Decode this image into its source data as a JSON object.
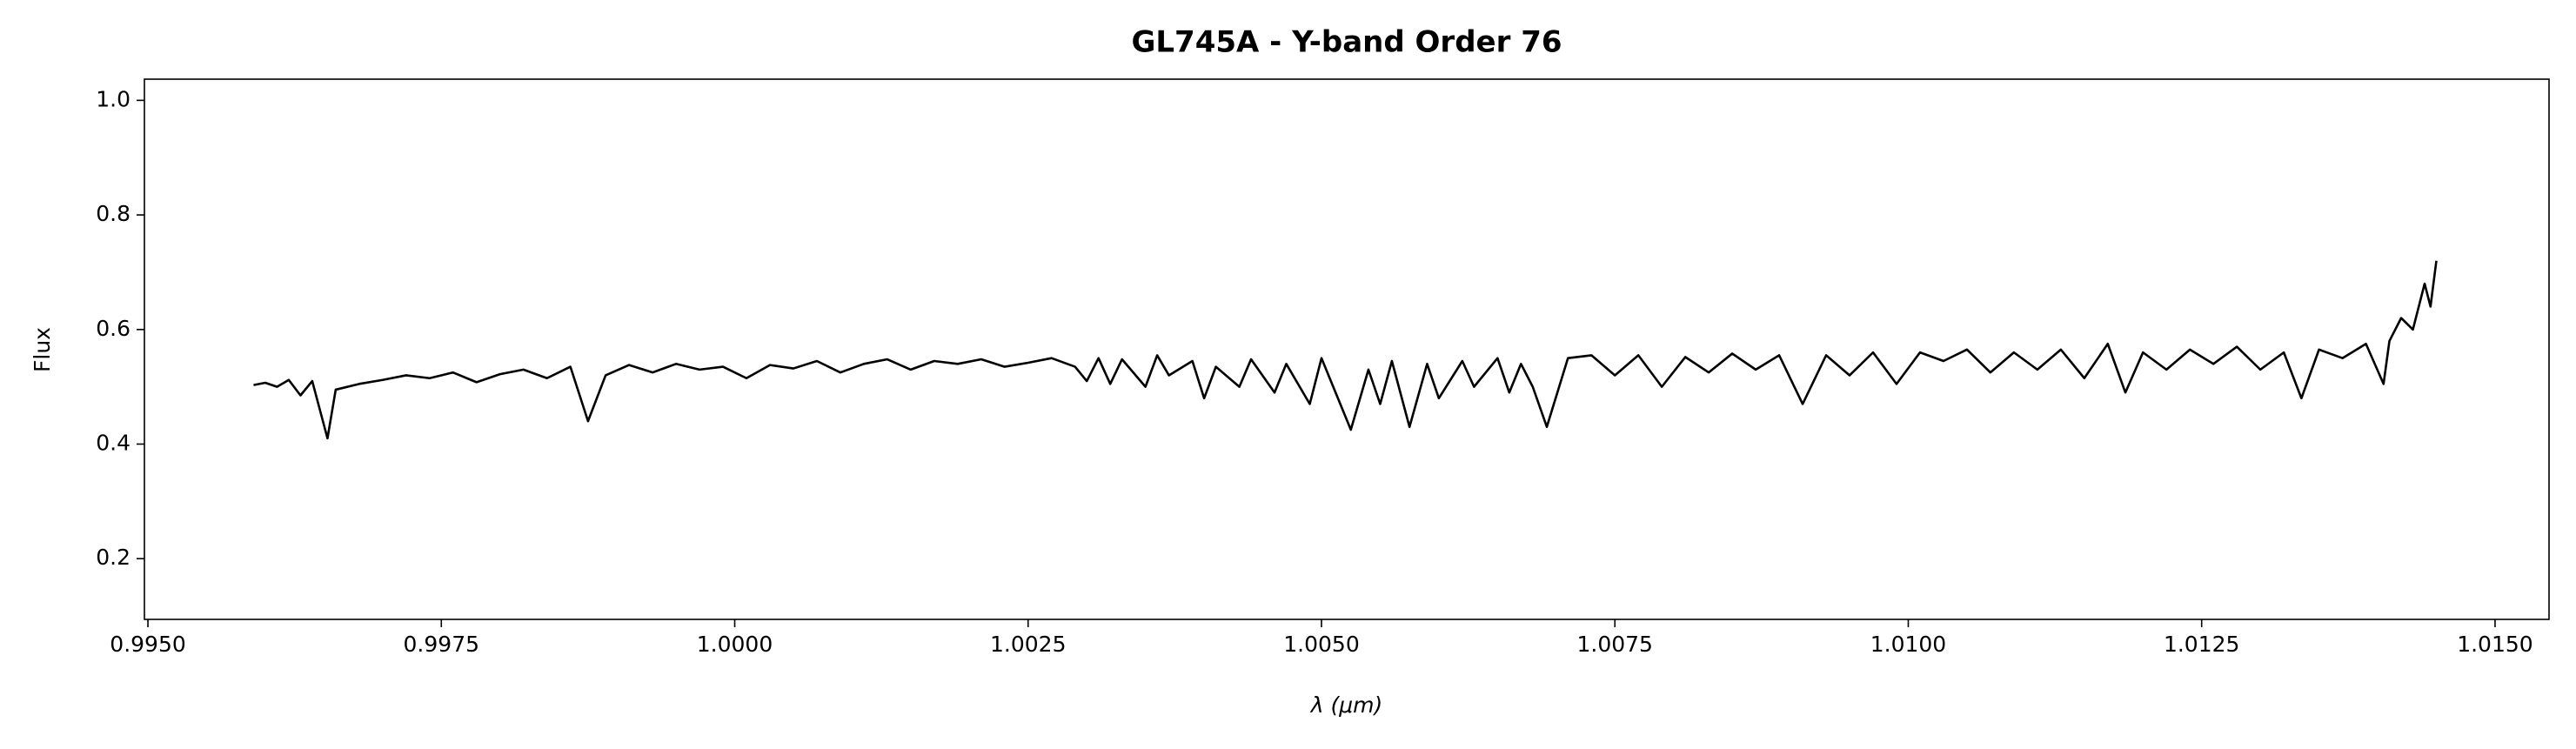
{
  "chart_data": {
    "type": "line",
    "title": "GL745A - Y-band Order 76",
    "xlabel": "λ (μm)",
    "ylabel": "Flux",
    "xlim": [
      0.99497,
      1.01546
    ],
    "ylim": [
      0.094,
      1.037
    ],
    "xticks": [
      {
        "value": 0.995,
        "label": "0.9950"
      },
      {
        "value": 0.9975,
        "label": "0.9975"
      },
      {
        "value": 1.0,
        "label": "1.0000"
      },
      {
        "value": 1.0025,
        "label": "1.0025"
      },
      {
        "value": 1.005,
        "label": "1.0050"
      },
      {
        "value": 1.0075,
        "label": "1.0075"
      },
      {
        "value": 1.01,
        "label": "1.0100"
      },
      {
        "value": 1.0125,
        "label": "1.0125"
      },
      {
        "value": 1.015,
        "label": "1.0150"
      }
    ],
    "yticks": [
      0.2,
      0.4,
      0.6,
      0.8,
      {
        "value": 1.0,
        "label": "1.0"
      }
    ],
    "grid": false,
    "series": [
      {
        "color": "#000000",
        "x": [
          0.9959,
          0.996,
          0.9961,
          0.9962,
          0.9963,
          0.9964,
          0.99653,
          0.9966,
          0.9968,
          0.997,
          0.9972,
          0.9974,
          0.9976,
          0.9978,
          0.998,
          0.9982,
          0.9984,
          0.9986,
          0.99875,
          0.9989,
          0.9991,
          0.9993,
          0.9995,
          0.9997,
          0.9999,
          1.0001,
          1.0003,
          1.0005,
          1.0007,
          1.0009,
          1.0011,
          1.0013,
          1.0015,
          1.0017,
          1.0019,
          1.0021,
          1.0023,
          1.0025,
          1.0027,
          1.0029,
          1.003,
          1.0031,
          1.0032,
          1.0033,
          1.0035,
          1.0036,
          1.0037,
          1.0039,
          1.004,
          1.0041,
          1.0043,
          1.0044,
          1.0046,
          1.0047,
          1.0049,
          1.005,
          1.0051,
          1.00525,
          1.0054,
          1.0055,
          1.0056,
          1.00575,
          1.0059,
          1.006,
          1.0062,
          1.0063,
          1.0065,
          1.0066,
          1.0067,
          1.0068,
          1.00692,
          1.0071,
          1.0073,
          1.0075,
          1.0077,
          1.0079,
          1.0081,
          1.0083,
          1.0085,
          1.0087,
          1.0089,
          1.0091,
          1.0093,
          1.0095,
          1.0097,
          1.0099,
          1.0101,
          1.0103,
          1.0105,
          1.0107,
          1.0109,
          1.0111,
          1.0113,
          1.0115,
          1.0117,
          1.01185,
          1.012,
          1.0122,
          1.0124,
          1.0126,
          1.0128,
          1.013,
          1.0132,
          1.01335,
          1.0135,
          1.0137,
          1.0139,
          1.01405,
          1.0141,
          1.0142,
          1.0143,
          1.0144,
          1.01445,
          1.0145
        ],
        "values": [
          0.503,
          0.507,
          0.5,
          0.512,
          0.485,
          0.51,
          0.41,
          0.495,
          0.505,
          0.512,
          0.52,
          0.515,
          0.525,
          0.508,
          0.522,
          0.53,
          0.515,
          0.535,
          0.44,
          0.52,
          0.538,
          0.525,
          0.54,
          0.53,
          0.535,
          0.515,
          0.538,
          0.532,
          0.545,
          0.525,
          0.54,
          0.548,
          0.53,
          0.545,
          0.54,
          0.548,
          0.535,
          0.542,
          0.55,
          0.535,
          0.51,
          0.55,
          0.505,
          0.548,
          0.5,
          0.555,
          0.52,
          0.545,
          0.48,
          0.535,
          0.5,
          0.548,
          0.49,
          0.54,
          0.47,
          0.55,
          0.5,
          0.425,
          0.53,
          0.47,
          0.545,
          0.43,
          0.54,
          0.48,
          0.545,
          0.5,
          0.55,
          0.49,
          0.54,
          0.5,
          0.43,
          0.55,
          0.555,
          0.52,
          0.555,
          0.5,
          0.552,
          0.525,
          0.558,
          0.53,
          0.555,
          0.47,
          0.555,
          0.52,
          0.56,
          0.505,
          0.56,
          0.545,
          0.565,
          0.525,
          0.56,
          0.53,
          0.565,
          0.515,
          0.575,
          0.49,
          0.56,
          0.53,
          0.565,
          0.54,
          0.57,
          0.53,
          0.56,
          0.48,
          0.565,
          0.55,
          0.575,
          0.505,
          0.58,
          0.62,
          0.6,
          0.68,
          0.64,
          0.72
        ]
      }
    ]
  }
}
